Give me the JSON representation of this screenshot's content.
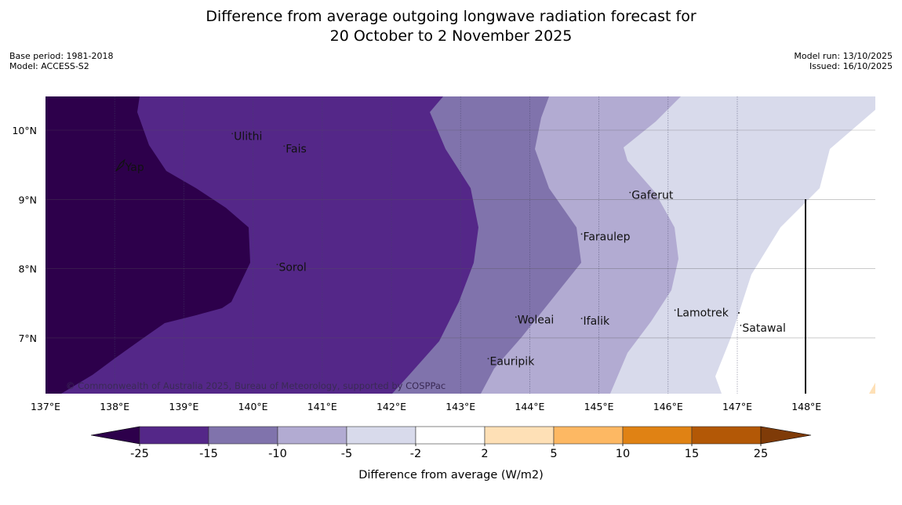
{
  "header": {
    "title_line1": "Difference from average outgoing longwave radiation forecast for",
    "title_line2": "20 October to 2 November 2025",
    "base_period": "Base period: 1981-2018",
    "model": "Model: ACCESS-S2",
    "model_run": "Model run: 13/10/2025",
    "issued": "Issued: 16/10/2025"
  },
  "map": {
    "lon_labels": [
      "137°E",
      "138°E",
      "139°E",
      "140°E",
      "141°E",
      "142°E",
      "143°E",
      "144°E",
      "145°E",
      "146°E",
      "147°E",
      "148°E"
    ],
    "lat_labels": [
      "10°N",
      "9°N",
      "8°N",
      "7°N"
    ],
    "places": [
      {
        "name": "Yap",
        "lon": 138.13,
        "lat": 9.5
      },
      {
        "name": "Ulithi",
        "lon": 139.7,
        "lat": 9.95
      },
      {
        "name": "Fais",
        "lon": 140.45,
        "lat": 9.77
      },
      {
        "name": "Gaferut",
        "lon": 145.45,
        "lat": 9.1
      },
      {
        "name": "Faraulep",
        "lon": 144.75,
        "lat": 8.5
      },
      {
        "name": "Sorol",
        "lon": 140.35,
        "lat": 8.06
      },
      {
        "name": "Lamotrek",
        "lon": 146.1,
        "lat": 7.4
      },
      {
        "name": "Woleai",
        "lon": 143.8,
        "lat": 7.3
      },
      {
        "name": "Ifalik",
        "lon": 144.75,
        "lat": 7.28
      },
      {
        "name": "Satawal",
        "lon": 147.05,
        "lat": 7.18
      },
      {
        "name": "Eauripik",
        "lon": 143.4,
        "lat": 6.7
      }
    ],
    "credit": "© Commonwealth of Australia 2025, Bureau of Meteorology, supported by COSPPac"
  },
  "colorbar": {
    "title": "Difference from average (W/m2)",
    "ticks": [
      "-25",
      "-15",
      "-10",
      "-5",
      "-2",
      "2",
      "5",
      "10",
      "15",
      "25"
    ],
    "colors": {
      "below_min": "#2d004b",
      "bins": [
        "#542788",
        "#8073ac",
        "#b2abd2",
        "#d8daeb",
        "#ffffff",
        "#fee0b6",
        "#fdb863",
        "#e08214",
        "#b35806"
      ],
      "above_max": "#7f3b08"
    }
  }
}
